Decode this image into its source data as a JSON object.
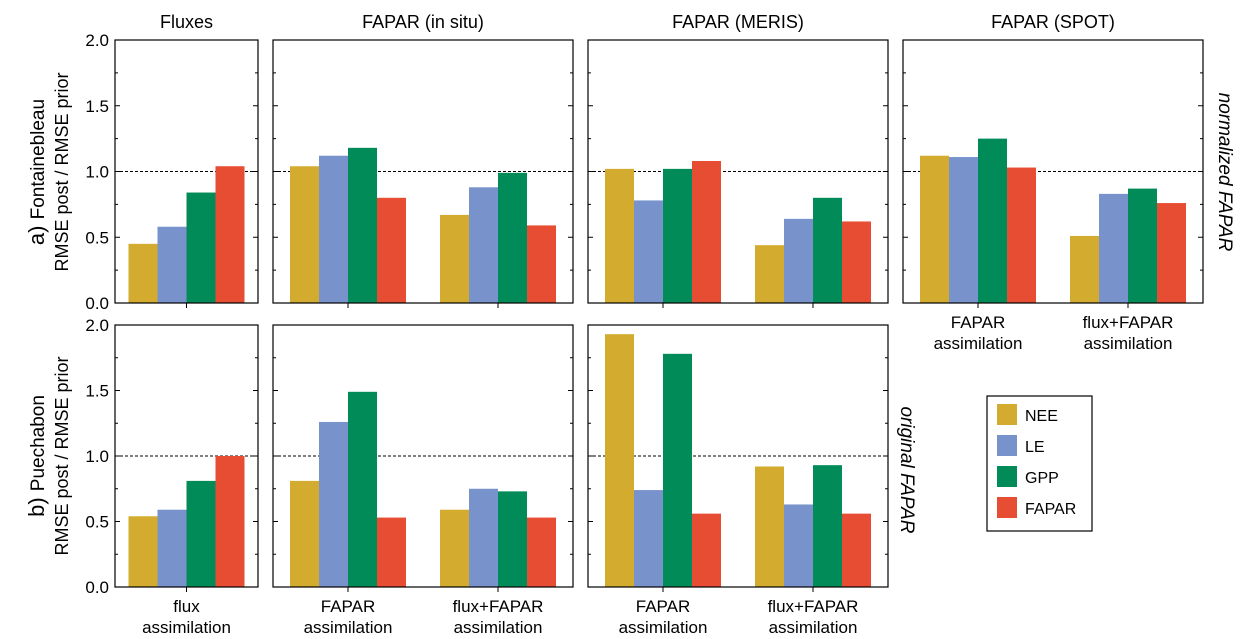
{
  "figure": {
    "column_titles": [
      "Fluxes",
      "FAPAR (in situ)",
      "FAPAR (MERIS)",
      "FAPAR (SPOT)"
    ],
    "row_a": {
      "site_prefix": "a)",
      "site": "Fontainebleau",
      "metric": "RMSE post / RMSE prior",
      "side_label": "normalized FAPAR"
    },
    "row_b": {
      "site_prefix": "b)",
      "site": "Puechabon",
      "metric": "RMSE post / RMSE prior",
      "side_label": "original FAPAR"
    },
    "group_labels": {
      "flux": [
        "flux",
        "assimilation"
      ],
      "fapar": [
        "FAPAR",
        "assimilation"
      ],
      "fluxfapar": [
        "flux+FAPAR",
        "assimilation"
      ]
    }
  },
  "legend": [
    {
      "name": "NEE",
      "color": "#D3AC2F"
    },
    {
      "name": "LE",
      "color": "#7893CC"
    },
    {
      "name": "GPP",
      "color": "#008B59"
    },
    {
      "name": "FAPAR",
      "color": "#E64D32"
    }
  ],
  "chart_data": [
    {
      "type": "bar",
      "panel": "a-fluxes",
      "title": "Fluxes",
      "ylabel": "RMSE post / RMSE prior",
      "ylim": [
        0,
        2.0
      ],
      "yticks": [
        "0.0",
        "0.5",
        "1.0",
        "1.5",
        "2.0"
      ],
      "reference_line": 1.0,
      "categories": [
        "flux assimilation"
      ],
      "series": [
        {
          "name": "NEE",
          "values": [
            0.45
          ]
        },
        {
          "name": "LE",
          "values": [
            0.58
          ]
        },
        {
          "name": "GPP",
          "values": [
            0.84
          ]
        },
        {
          "name": "FAPAR",
          "values": [
            1.04
          ]
        }
      ]
    },
    {
      "type": "bar",
      "panel": "a-fapar-insitu",
      "title": "FAPAR (in situ)",
      "ylim": [
        0,
        2.0
      ],
      "reference_line": 1.0,
      "categories": [
        "FAPAR assimilation",
        "flux+FAPAR assimilation"
      ],
      "series": [
        {
          "name": "NEE",
          "values": [
            1.04,
            0.67
          ]
        },
        {
          "name": "LE",
          "values": [
            1.12,
            0.88
          ]
        },
        {
          "name": "GPP",
          "values": [
            1.18,
            0.99
          ]
        },
        {
          "name": "FAPAR",
          "values": [
            0.8,
            0.59
          ]
        }
      ]
    },
    {
      "type": "bar",
      "panel": "a-fapar-meris",
      "title": "FAPAR (MERIS)",
      "ylim": [
        0,
        2.0
      ],
      "reference_line": 1.0,
      "categories": [
        "FAPAR assimilation",
        "flux+FAPAR assimilation"
      ],
      "series": [
        {
          "name": "NEE",
          "values": [
            1.02,
            0.44
          ]
        },
        {
          "name": "LE",
          "values": [
            0.78,
            0.64
          ]
        },
        {
          "name": "GPP",
          "values": [
            1.02,
            0.8
          ]
        },
        {
          "name": "FAPAR",
          "values": [
            1.08,
            0.62
          ]
        }
      ]
    },
    {
      "type": "bar",
      "panel": "a-fapar-spot",
      "title": "FAPAR (SPOT)",
      "ylim": [
        0,
        2.0
      ],
      "reference_line": 1.0,
      "categories": [
        "FAPAR assimilation",
        "flux+FAPAR assimilation"
      ],
      "series": [
        {
          "name": "NEE",
          "values": [
            1.12,
            0.51
          ]
        },
        {
          "name": "LE",
          "values": [
            1.11,
            0.83
          ]
        },
        {
          "name": "GPP",
          "values": [
            1.25,
            0.87
          ]
        },
        {
          "name": "FAPAR",
          "values": [
            1.03,
            0.76
          ]
        }
      ]
    },
    {
      "type": "bar",
      "panel": "b-fluxes",
      "ylabel": "RMSE post / RMSE prior",
      "ylim": [
        0,
        2.0
      ],
      "yticks": [
        "0.0",
        "0.5",
        "1.0",
        "1.5",
        "2.0"
      ],
      "reference_line": 1.0,
      "categories": [
        "flux assimilation"
      ],
      "series": [
        {
          "name": "NEE",
          "values": [
            0.54
          ]
        },
        {
          "name": "LE",
          "values": [
            0.59
          ]
        },
        {
          "name": "GPP",
          "values": [
            0.81
          ]
        },
        {
          "name": "FAPAR",
          "values": [
            1.0
          ]
        }
      ]
    },
    {
      "type": "bar",
      "panel": "b-fapar-insitu",
      "ylim": [
        0,
        2.0
      ],
      "reference_line": 1.0,
      "categories": [
        "FAPAR assimilation",
        "flux+FAPAR assimilation"
      ],
      "series": [
        {
          "name": "NEE",
          "values": [
            0.81,
            0.59
          ]
        },
        {
          "name": "LE",
          "values": [
            1.26,
            0.75
          ]
        },
        {
          "name": "GPP",
          "values": [
            1.49,
            0.73
          ]
        },
        {
          "name": "FAPAR",
          "values": [
            0.53,
            0.53
          ]
        }
      ]
    },
    {
      "type": "bar",
      "panel": "b-fapar-meris",
      "ylim": [
        0,
        2.0
      ],
      "reference_line": 1.0,
      "categories": [
        "FAPAR assimilation",
        "flux+FAPAR assimilation"
      ],
      "series": [
        {
          "name": "NEE",
          "values": [
            1.93,
            0.92
          ]
        },
        {
          "name": "LE",
          "values": [
            0.74,
            0.63
          ]
        },
        {
          "name": "GPP",
          "values": [
            1.78,
            0.93
          ]
        },
        {
          "name": "FAPAR",
          "values": [
            0.56,
            0.56
          ]
        }
      ]
    }
  ]
}
